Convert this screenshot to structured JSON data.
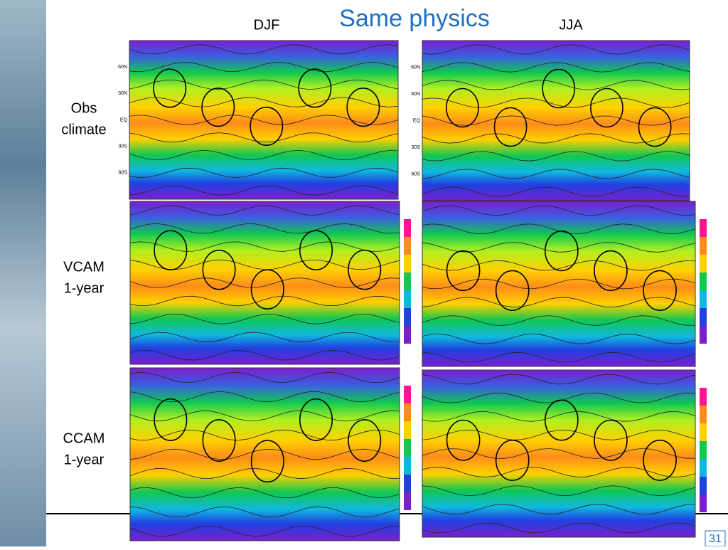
{
  "title": "Same physics",
  "columns": [
    "DJF",
    "JJA"
  ],
  "rows": [
    {
      "label": [
        "Obs",
        "climate"
      ]
    },
    {
      "label": [
        "VCAM",
        "1-year"
      ]
    },
    {
      "label": [
        "CCAM",
        "1-year"
      ]
    }
  ],
  "lat_labels": [
    "60N",
    "30N",
    "EQ",
    "30S",
    "60S"
  ],
  "page_number": "31"
}
